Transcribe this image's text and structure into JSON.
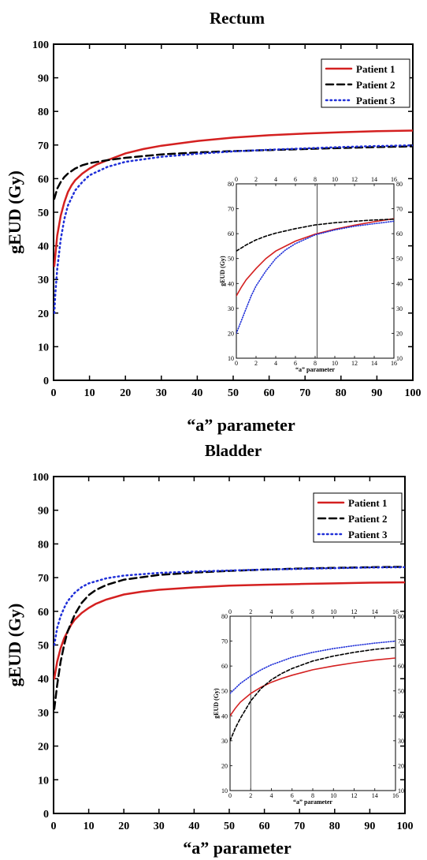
{
  "chart_data": [
    {
      "type": "line",
      "title": "Rectum",
      "xlabel": "“a”  parameter",
      "ylabel": "gEUD (Gy)",
      "xlim": [
        0,
        100
      ],
      "ylim": [
        0,
        100
      ],
      "xticks": [
        0,
        10,
        20,
        30,
        40,
        50,
        60,
        70,
        80,
        90,
        100
      ],
      "yticks": [
        0,
        10,
        20,
        30,
        40,
        50,
        60,
        70,
        80,
        90,
        100
      ],
      "legend_position": "top-right",
      "series": [
        {
          "name": "Patient 1",
          "style": "solid",
          "color": "#d42020",
          "x": [
            0.2,
            1,
            2,
            3,
            4,
            5,
            6,
            8,
            10,
            12,
            15,
            20,
            25,
            30,
            40,
            50,
            60,
            70,
            80,
            90,
            100
          ],
          "y": [
            34,
            43,
            49,
            53,
            56,
            58,
            59.5,
            61.5,
            63,
            64.2,
            65.5,
            67.5,
            68.8,
            69.8,
            71.2,
            72.2,
            72.9,
            73.4,
            73.8,
            74.1,
            74.3
          ]
        },
        {
          "name": "Patient 2",
          "style": "dashed",
          "color": "#000000",
          "x": [
            0.2,
            1,
            2,
            3,
            4,
            6,
            8,
            10,
            15,
            20,
            30,
            40,
            50,
            60,
            70,
            80,
            90,
            100
          ],
          "y": [
            54,
            57,
            59,
            60.5,
            61.5,
            63,
            64,
            64.6,
            65.5,
            66.2,
            67.2,
            67.8,
            68.2,
            68.5,
            68.8,
            69.1,
            69.4,
            69.6
          ]
        },
        {
          "name": "Patient 3",
          "style": "dotted",
          "color": "#1f2fd8",
          "x": [
            0.2,
            0.5,
            1,
            2,
            3,
            4,
            6,
            8,
            10,
            15,
            20,
            30,
            40,
            50,
            60,
            70,
            80,
            90,
            100
          ],
          "y": [
            20,
            26,
            33,
            42,
            48,
            52,
            56.5,
            59,
            61,
            63.5,
            65,
            66.5,
            67.4,
            68.1,
            68.6,
            69,
            69.4,
            69.7,
            69.9
          ]
        }
      ],
      "inset": {
        "xlabel": "“a”  parameter",
        "ylabel": "gEUD (Gy)",
        "xlim": [
          0,
          16
        ],
        "ylim": [
          10,
          80
        ],
        "xticks": [
          0,
          2,
          4,
          6,
          8,
          10,
          12,
          14,
          16
        ],
        "yticks": [
          10,
          20,
          30,
          40,
          50,
          60,
          70,
          80
        ],
        "vline_x": 8.2,
        "series": [
          {
            "name": "Patient 1",
            "style": "solid",
            "color": "#d42020",
            "x": [
              0,
              0.5,
              1,
              2,
              3,
              4,
              5,
              6,
              8,
              10,
              12,
              14,
              16
            ],
            "y": [
              35,
              38.5,
              41.5,
              46,
              50,
              53,
              55,
              57,
              59.8,
              61.8,
              63.4,
              64.8,
              66
            ]
          },
          {
            "name": "Patient 2",
            "style": "dashed",
            "color": "#000000",
            "x": [
              0,
              1,
              2,
              3,
              4,
              6,
              8,
              10,
              12,
              14,
              16
            ],
            "y": [
              53,
              55.5,
              57.5,
              59,
              60.2,
              62,
              63.5,
              64.4,
              65,
              65.5,
              65.8
            ]
          },
          {
            "name": "Patient 3",
            "style": "dotted",
            "color": "#1f2fd8",
            "x": [
              0,
              0.5,
              1,
              1.5,
              2,
              3,
              4,
              5,
              6,
              8,
              10,
              12,
              14,
              16
            ],
            "y": [
              20,
              25,
              30,
              35,
              39,
              45,
              50,
              53.5,
              56,
              59.5,
              61.5,
              63,
              64,
              65
            ]
          }
        ]
      }
    },
    {
      "type": "line",
      "title": "Bladder",
      "xlabel": "“a”  parameter",
      "ylabel": "gEUD (Gy)",
      "xlim": [
        0,
        100
      ],
      "ylim": [
        0,
        100
      ],
      "xticks": [
        0,
        10,
        20,
        30,
        40,
        50,
        60,
        70,
        80,
        90,
        100
      ],
      "yticks": [
        0,
        10,
        20,
        30,
        40,
        50,
        60,
        70,
        80,
        90,
        100
      ],
      "legend_position": "top-right",
      "series": [
        {
          "name": "Patient 1",
          "style": "solid",
          "color": "#d42020",
          "x": [
            0.2,
            1,
            2,
            3,
            4,
            5,
            6,
            8,
            10,
            12,
            15,
            20,
            25,
            30,
            40,
            50,
            60,
            70,
            80,
            90,
            100
          ],
          "y": [
            40,
            45,
            49,
            52,
            54,
            56,
            57.5,
            59.5,
            61,
            62.2,
            63.5,
            65,
            65.8,
            66.4,
            67.1,
            67.6,
            67.9,
            68.1,
            68.3,
            68.5,
            68.6
          ]
        },
        {
          "name": "Patient 2",
          "style": "dashed",
          "color": "#000000",
          "x": [
            0.2,
            1,
            2,
            3,
            4,
            6,
            8,
            10,
            12,
            15,
            20,
            30,
            40,
            50,
            60,
            70,
            80,
            90,
            100
          ],
          "y": [
            31,
            38,
            45,
            50,
            54,
            59,
            62.5,
            64.8,
            66.3,
            67.8,
            69.4,
            70.8,
            71.5,
            72,
            72.4,
            72.7,
            72.9,
            73.1,
            73.2
          ]
        },
        {
          "name": "Patient 3",
          "style": "dotted",
          "color": "#1f2fd8",
          "x": [
            0.2,
            1,
            2,
            3,
            4,
            6,
            8,
            10,
            15,
            20,
            30,
            40,
            50,
            60,
            70,
            80,
            90,
            100
          ],
          "y": [
            50,
            55,
            58.5,
            61,
            63,
            65.5,
            67.2,
            68.3,
            69.8,
            70.6,
            71.4,
            71.8,
            72.1,
            72.4,
            72.6,
            72.8,
            73,
            73.1
          ]
        }
      ],
      "inset": {
        "xlabel": "“a”  parameter",
        "ylabel": "gEUD (Gy)",
        "xlim": [
          0,
          16
        ],
        "ylim": [
          10,
          80
        ],
        "xticks": [
          0,
          2,
          4,
          6,
          8,
          10,
          12,
          14,
          16
        ],
        "yticks": [
          10,
          20,
          30,
          40,
          50,
          60,
          70,
          80
        ],
        "vline_x": 2,
        "series": [
          {
            "name": "Patient 1",
            "style": "solid",
            "color": "#d42020",
            "x": [
              0,
              0.5,
              1,
              2,
              3,
              4,
              5,
              6,
              8,
              10,
              12,
              14,
              16
            ],
            "y": [
              40,
              43,
              45.5,
              49,
              51.5,
              53.5,
              55,
              56.3,
              58.5,
              60,
              61.3,
              62.4,
              63.2
            ]
          },
          {
            "name": "Patient 2",
            "style": "dashed",
            "color": "#000000",
            "x": [
              0,
              0.5,
              1,
              2,
              3,
              4,
              5,
              6,
              8,
              10,
              12,
              14,
              16
            ],
            "y": [
              30,
              35,
              39,
              46,
              51,
              54.5,
              57,
              59,
              62,
              64,
              65.5,
              66.7,
              67.5
            ]
          },
          {
            "name": "Patient 3",
            "style": "dotted",
            "color": "#1f2fd8",
            "x": [
              0,
              1,
              2,
              3,
              4,
              6,
              8,
              10,
              12,
              14,
              16
            ],
            "y": [
              49,
              53,
              56,
              58.5,
              60.5,
              63.5,
              65.5,
              67,
              68.2,
              69.2,
              70
            ]
          }
        ]
      }
    }
  ]
}
